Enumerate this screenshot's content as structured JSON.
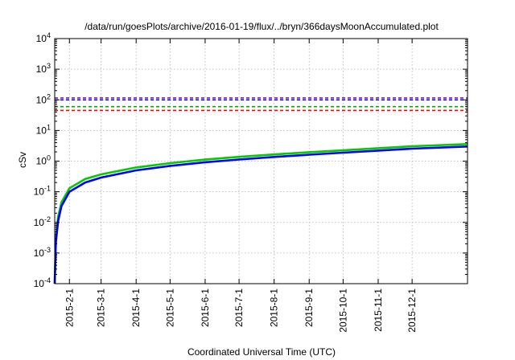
{
  "chart_data": {
    "type": "line",
    "title": "/data/run/goesPlots/archive/2016-01-19/flux/../bryn/366daysMoonAccumulated.plot",
    "xlabel": "Coordinated Universal Time (UTC)",
    "ylabel": "cSv",
    "y_scale": "log",
    "ylim": [
      0.0001,
      10000
    ],
    "xlim": [
      "2015-01-19",
      "2016-01-19"
    ],
    "grid": true,
    "legend": "none",
    "y_ticks": [
      {
        "value": 0.0001,
        "base": "10",
        "exp": "-4"
      },
      {
        "value": 0.001,
        "base": "10",
        "exp": "-3"
      },
      {
        "value": 0.01,
        "base": "10",
        "exp": "-2"
      },
      {
        "value": 0.1,
        "base": "10",
        "exp": "-1"
      },
      {
        "value": 1,
        "base": "10",
        "exp": "0"
      },
      {
        "value": 10,
        "base": "10",
        "exp": "1"
      },
      {
        "value": 100,
        "base": "10",
        "exp": "2"
      },
      {
        "value": 1000,
        "base": "10",
        "exp": "3"
      },
      {
        "value": 10000,
        "base": "10",
        "exp": "4"
      }
    ],
    "x_ticks": [
      {
        "date": "2015-02-01",
        "label": "2015-2-1"
      },
      {
        "date": "2015-03-01",
        "label": "2015-3-1"
      },
      {
        "date": "2015-04-01",
        "label": "2015-4-1"
      },
      {
        "date": "2015-05-01",
        "label": "2015-5-1"
      },
      {
        "date": "2015-06-01",
        "label": "2015-6-1"
      },
      {
        "date": "2015-07-01",
        "label": "2015-7-1"
      },
      {
        "date": "2015-08-01",
        "label": "2015-8-1"
      },
      {
        "date": "2015-09-01",
        "label": "2015-9-1"
      },
      {
        "date": "2015-10-01",
        "label": "2015-10-1"
      },
      {
        "date": "2015-11-01",
        "label": "2015-11-1"
      },
      {
        "date": "2015-12-01",
        "label": "2015-12-1"
      }
    ],
    "reference_lines": [
      {
        "value": 115,
        "color": "#9400d3"
      },
      {
        "value": 100,
        "color": "#0000ff"
      },
      {
        "value": 60,
        "color": "#00aa00"
      },
      {
        "value": 45,
        "color": "#ff0000"
      }
    ],
    "series": [
      {
        "color": "#00cc00",
        "x": [
          "2015-01-19",
          "2015-01-20",
          "2015-01-22",
          "2015-01-25",
          "2015-02-01",
          "2015-02-15",
          "2015-03-01",
          "2015-04-01",
          "2015-05-01",
          "2015-06-01",
          "2015-07-01",
          "2015-08-01",
          "2015-09-01",
          "2015-10-01",
          "2015-11-01",
          "2015-12-01",
          "2016-01-19"
        ],
        "y": [
          0.0001,
          0.003,
          0.015,
          0.045,
          0.13,
          0.26,
          0.37,
          0.62,
          0.86,
          1.12,
          1.38,
          1.65,
          1.95,
          2.25,
          2.65,
          3.05,
          3.6
        ]
      },
      {
        "color": "#0000ff",
        "x": [
          "2015-01-19",
          "2015-01-20",
          "2015-01-22",
          "2015-01-25",
          "2015-02-01",
          "2015-02-15",
          "2015-03-01",
          "2015-04-01",
          "2015-05-01",
          "2015-06-01",
          "2015-07-01",
          "2015-08-01",
          "2015-09-01",
          "2015-10-01",
          "2015-11-01",
          "2015-12-01",
          "2016-01-19"
        ],
        "y": [
          0.0001,
          0.0022,
          0.011,
          0.034,
          0.1,
          0.2,
          0.29,
          0.5,
          0.7,
          0.92,
          1.13,
          1.37,
          1.62,
          1.88,
          2.2,
          2.55,
          3.0
        ]
      }
    ]
  }
}
